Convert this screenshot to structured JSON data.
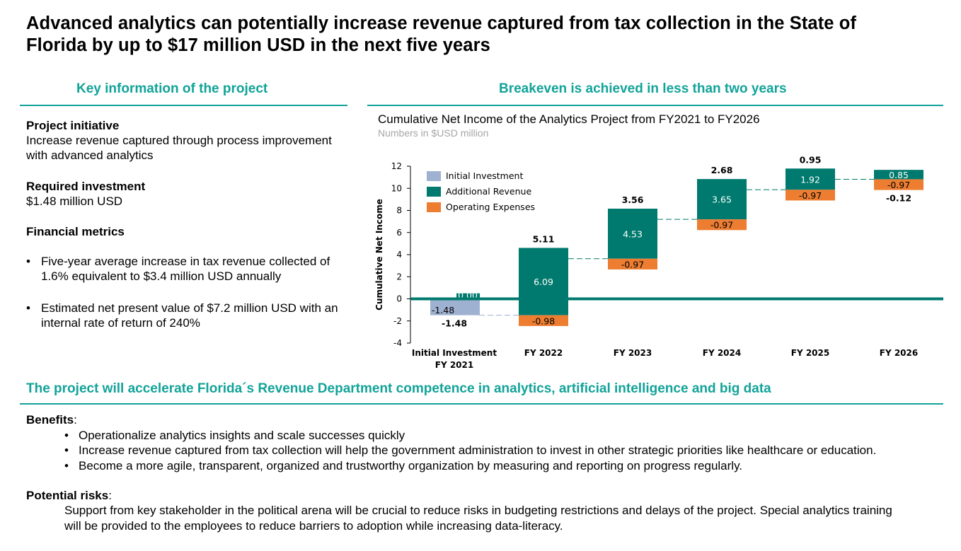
{
  "title": "Advanced analytics can potentially increase revenue captured from tax collection in the State of Florida by up to $17 million USD in the next five years",
  "left": {
    "heading": "Key information of the project",
    "initiative_label": "Project initiative",
    "initiative_lines": [
      "Increase revenue captured through process improvement",
      "with advanced analytics"
    ],
    "investment_label": "Required investment",
    "investment_value": "$1.48 million USD",
    "metrics_label": "Financial metrics",
    "metrics": [
      [
        "Five-year average increase in tax revenue collected of",
        "1.6% equivalent to $3.4 million USD annually"
      ],
      [
        "Estimated net present value of $7.2 million USD with an",
        "internal rate of return of 240%"
      ]
    ]
  },
  "right": {
    "heading": "Breakeven is achieved in less than two years"
  },
  "bottom": {
    "heading": "The project will accelerate Florida´s Revenue Department competence in analytics, artificial intelligence and big data",
    "benefits_label": "Benefits",
    "benefits": [
      "Operationalize analytics insights and scale successes quickly",
      "Increase revenue captured from tax collection will help the government administration to invest in other strategic priorities like healthcare or education.",
      "Become a more agile, transparent, organized and trustworthy organization by measuring and reporting on progress regularly."
    ],
    "risks_label": "Potential risks",
    "risks_lines": [
      "Support from key stakeholder in the political arena will be crucial to reduce risks in budgeting restrictions and delays of the project. Special analytics training",
      "will be provided to the employees to reduce barriers to adoption while increasing data-literacy."
    ]
  },
  "chart_data": {
    "type": "bar",
    "subtype": "waterfall",
    "title": "Cumulative Net Income of the Analytics Project from FY2021 to FY2026",
    "subtitle": "Numbers in $USD million",
    "ylabel": "Cumulative Net Income",
    "xlabel": "",
    "ylim": [
      -4,
      12
    ],
    "yticks": [
      -4,
      -2,
      0,
      2,
      4,
      6,
      8,
      10,
      12
    ],
    "categories": [
      [
        "Initial Investment",
        "FY 2021"
      ],
      [
        "FY 2022"
      ],
      [
        "FY 2023"
      ],
      [
        "FY 2024"
      ],
      [
        "FY 2025"
      ],
      [
        "FY 2026"
      ]
    ],
    "legend": {
      "position": "top-left",
      "entries": [
        "Initial Investment",
        "Additional Revenue",
        "Operating Expenses"
      ]
    },
    "colors": {
      "initial": "#9FB1D0",
      "revenue": "#007A6E",
      "expenses": "#ED7D31",
      "zero_line": "#007A6E"
    },
    "initial_investment": -1.48,
    "initial_revenue_label": "0.00",
    "series": [
      {
        "name": "Additional Revenue",
        "values": [
          0.0,
          6.09,
          4.53,
          3.65,
          1.92,
          0.85
        ]
      },
      {
        "name": "Operating Expenses",
        "values": [
          0,
          -0.98,
          -0.97,
          -0.97,
          -0.97,
          -0.97
        ]
      }
    ],
    "net_labels": [
      "-1.48",
      "5.11",
      "3.56",
      "2.68",
      "0.95",
      "-0.12"
    ]
  }
}
